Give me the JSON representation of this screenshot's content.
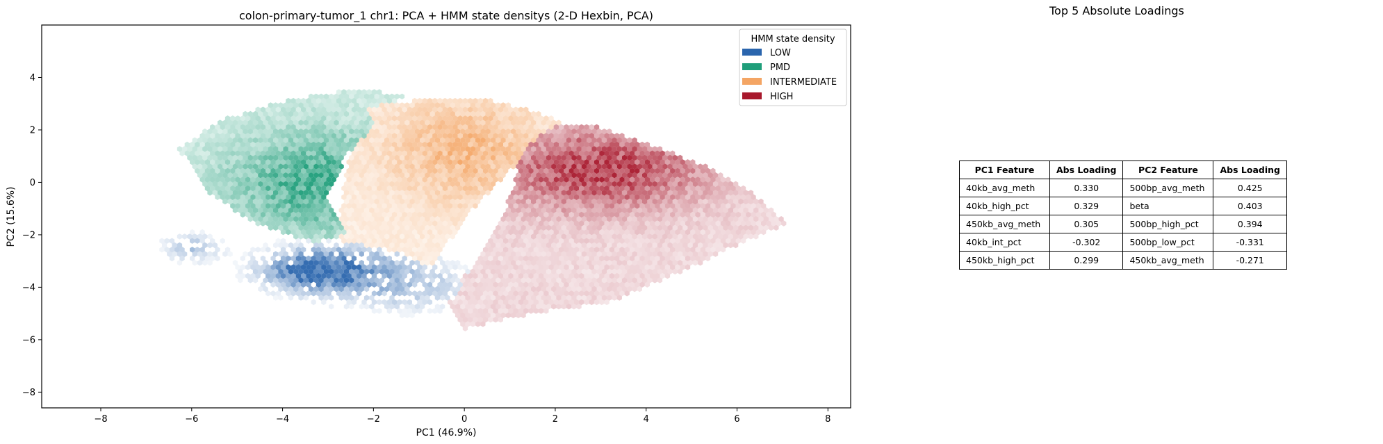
{
  "chart_data": {
    "type": "heatmap",
    "subtype": "hexbin",
    "title": "colon-primary-tumor_1 chr1: PCA + HMM state densitys (2-D Hexbin, PCA)",
    "xlabel": "PC1 (46.9%)",
    "ylabel": "PC2 (15.6%)",
    "xlim": [
      -9.3,
      8.5
    ],
    "ylim": [
      -8.6,
      6.0
    ],
    "xticks": [
      -8,
      -6,
      -4,
      -2,
      0,
      2,
      4,
      6,
      8
    ],
    "yticks": [
      -8,
      -6,
      -4,
      -2,
      0,
      2,
      4
    ],
    "xtick_labels": [
      "−8",
      "−6",
      "−4",
      "−2",
      "0",
      "2",
      "4",
      "6",
      "8"
    ],
    "ytick_labels": [
      "−8",
      "−6",
      "−4",
      "−2",
      "0",
      "2",
      "4"
    ],
    "grid": false,
    "legend": {
      "title": "HMM state density",
      "placement": "top-right",
      "entries": [
        {
          "name": "LOW",
          "color": "#2a65ad"
        },
        {
          "name": "PMD",
          "color": "#1f9e7a"
        },
        {
          "name": "INTERMEDIATE",
          "color": "#f4a564"
        },
        {
          "name": "HIGH",
          "color": "#a8182c"
        }
      ]
    },
    "series": [
      {
        "name": "LOW",
        "color": "#2a65ad",
        "center": [
          -3.0,
          -3.2
        ],
        "region": {
          "x": [
            -8.5,
            1.2
          ],
          "y": [
            -6.2,
            -0.8
          ]
        }
      },
      {
        "name": "PMD",
        "color": "#1f9e7a",
        "center": [
          -3.5,
          -0.2
        ],
        "region": {
          "x": [
            -6.4,
            -1.0
          ],
          "y": [
            -2.3,
            3.5
          ]
        }
      },
      {
        "name": "INTERMEDIATE",
        "color": "#f4a564",
        "center": [
          0.2,
          0.5
        ],
        "region": {
          "x": [
            -2.7,
            2.3
          ],
          "y": [
            -4.5,
            3.1
          ]
        }
      },
      {
        "name": "HIGH",
        "color": "#a8182c",
        "center": [
          3.2,
          0.6
        ],
        "region": {
          "x": [
            0.0,
            7.2
          ],
          "y": [
            -5.6,
            2.3
          ]
        }
      }
    ]
  },
  "loadings": {
    "title": "Top 5 Absolute Loadings",
    "headers": [
      "PC1 Feature",
      "Abs Loading",
      "PC2 Feature",
      "Abs Loading"
    ],
    "rows": [
      [
        "40kb_avg_meth",
        "0.330",
        "500bp_avg_meth",
        "0.425"
      ],
      [
        "40kb_high_pct",
        "0.329",
        "beta",
        "0.403"
      ],
      [
        "450kb_avg_meth",
        "0.305",
        "500bp_high_pct",
        "0.394"
      ],
      [
        "40kb_int_pct",
        "-0.302",
        "500bp_low_pct",
        "-0.331"
      ],
      [
        "450kb_high_pct",
        "0.299",
        "450kb_avg_meth",
        "-0.271"
      ]
    ]
  }
}
